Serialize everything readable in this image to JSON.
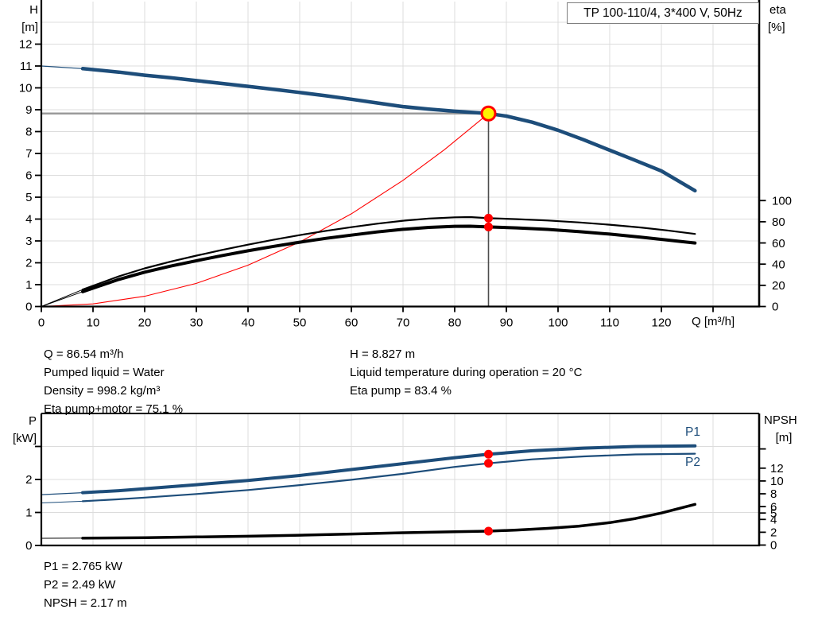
{
  "title_box": {
    "label": "TP 100-110/4, 3*400 V, 50Hz"
  },
  "colors": {
    "curve_blue": "#1D4D7A",
    "curve_black": "#000000",
    "curve_red": "#FF0000",
    "marker_red": "#FF0000",
    "marker_yellow_fill": "#FFF200",
    "grid": "#DCDCDC",
    "axis": "#000000",
    "crosshair_h": "#9A9A9A",
    "crosshair_v": "#4D4D4D",
    "label_blue": "#1D4D7A",
    "title_border": "#7F7F7F",
    "text": "#000000"
  },
  "info_top": {
    "left_lines": [
      "Q = 86.54 m³/h",
      "Pumped liquid = Water",
      "Density = 998.2 kg/m³",
      "Eta pump+motor = 75.1 %"
    ],
    "right_lines": [
      "H = 8.827 m",
      "Liquid temperature during operation = 20 °C",
      "Eta pump = 83.4 %"
    ]
  },
  "info_bottom": {
    "lines": [
      "P1 = 2.765 kW",
      "P2 = 2.49 kW",
      "NPSH = 2.17 m"
    ]
  },
  "chart_data": [
    {
      "type": "line",
      "id": "hq-eta-chart",
      "title": "TP 100-110/4, 3*400 V, 50Hz",
      "xlabel": "Q [m³/h]",
      "ylabel_left_line1": "H",
      "ylabel_left_line2": "[m]",
      "ylabel_right_line1": "eta",
      "ylabel_right_line2": "[%]",
      "xlim": [
        0,
        139
      ],
      "ylim_left": [
        0,
        14
      ],
      "ylim_right": [
        0,
        100
      ],
      "grid": true,
      "xticks_labeled": [
        0,
        10,
        20,
        30,
        40,
        50,
        60,
        70,
        80,
        90,
        100,
        110,
        120
      ],
      "xticks_unlabeled": [
        130
      ],
      "yticks_left": [
        0,
        1,
        2,
        3,
        4,
        5,
        6,
        7,
        8,
        9,
        10,
        11,
        12
      ],
      "yticks_right": [
        0,
        20,
        40,
        60,
        80,
        100
      ],
      "grid_x": [
        10,
        20,
        30,
        40,
        50,
        60,
        70,
        80,
        90,
        100,
        110,
        120,
        130
      ],
      "grid_y_left": [
        1,
        2,
        3,
        4,
        5,
        6,
        7,
        8,
        9,
        10,
        11,
        12,
        13
      ],
      "crosshair": {
        "q": 86.54,
        "h": 8.827
      },
      "series": [
        {
          "name": "Head curve",
          "axis": "left",
          "color": "#1D4D7A",
          "w_thin": 1.2,
          "w_thick": 4.5,
          "split_q": 8,
          "points": [
            [
              0,
              11.0
            ],
            [
              8,
              10.88
            ],
            [
              15,
              10.72
            ],
            [
              20,
              10.58
            ],
            [
              25,
              10.46
            ],
            [
              30,
              10.33
            ],
            [
              35,
              10.2
            ],
            [
              40,
              10.07
            ],
            [
              45,
              9.93
            ],
            [
              50,
              9.79
            ],
            [
              55,
              9.64
            ],
            [
              60,
              9.48
            ],
            [
              65,
              9.31
            ],
            [
              70,
              9.14
            ],
            [
              75,
              9.03
            ],
            [
              80,
              8.93
            ],
            [
              86.54,
              8.827
            ],
            [
              90,
              8.71
            ],
            [
              95,
              8.43
            ],
            [
              100,
              8.06
            ],
            [
              105,
              7.62
            ],
            [
              110,
              7.15
            ],
            [
              115,
              6.68
            ],
            [
              120,
              6.2
            ],
            [
              126.5,
              5.3
            ]
          ]
        },
        {
          "name": "System curve",
          "axis": "left",
          "color": "#FF0000",
          "w_thin": 1.1,
          "w_thick": 1.1,
          "split_q": 0,
          "points": [
            [
              0,
              0
            ],
            [
              10,
              0.12
            ],
            [
              20,
              0.47
            ],
            [
              30,
              1.06
            ],
            [
              40,
              1.89
            ],
            [
              50,
              2.95
            ],
            [
              60,
              4.24
            ],
            [
              70,
              5.77
            ],
            [
              78,
              7.17
            ],
            [
              86.54,
              8.827
            ]
          ]
        },
        {
          "name": "Eta pump",
          "axis": "right",
          "color": "#000000",
          "w_thin": 1.0,
          "w_thick": 2.2,
          "split_q": 8,
          "points": [
            [
              0,
              0
            ],
            [
              8,
              16
            ],
            [
              15,
              28.5
            ],
            [
              20,
              36
            ],
            [
              25,
              42.3
            ],
            [
              30,
              48
            ],
            [
              35,
              53.4
            ],
            [
              40,
              58.4
            ],
            [
              45,
              63.1
            ],
            [
              50,
              67.4
            ],
            [
              55,
              71.4
            ],
            [
              60,
              74.9
            ],
            [
              65,
              78.2
            ],
            [
              70,
              81
            ],
            [
              75,
              83
            ],
            [
              80,
              84.2
            ],
            [
              83,
              84.4
            ],
            [
              86.54,
              83.4
            ],
            [
              92,
              82.5
            ],
            [
              98,
              81.2
            ],
            [
              104,
              79.4
            ],
            [
              110,
              77.2
            ],
            [
              116,
              74.6
            ],
            [
              121,
              71.9
            ],
            [
              126.5,
              68.5
            ]
          ]
        },
        {
          "name": "Eta pump+motor",
          "axis": "right",
          "color": "#000000",
          "w_thin": 1.0,
          "w_thick": 4.0,
          "split_q": 8,
          "points": [
            [
              0,
              0
            ],
            [
              8,
              14
            ],
            [
              15,
              25.6
            ],
            [
              20,
              32.4
            ],
            [
              25,
              38.1
            ],
            [
              30,
              43.2
            ],
            [
              35,
              48.1
            ],
            [
              40,
              52.6
            ],
            [
              45,
              56.8
            ],
            [
              50,
              60.7
            ],
            [
              55,
              64.3
            ],
            [
              60,
              67.4
            ],
            [
              65,
              70.4
            ],
            [
              70,
              72.9
            ],
            [
              75,
              74.7
            ],
            [
              80,
              75.7
            ],
            [
              83,
              75.8
            ],
            [
              86.54,
              75.1
            ],
            [
              92,
              74.2
            ],
            [
              98,
              72.8
            ],
            [
              104,
              70.8
            ],
            [
              110,
              68.4
            ],
            [
              116,
              65.5
            ],
            [
              121,
              62.9
            ],
            [
              126.5,
              60.0
            ]
          ]
        }
      ],
      "markers": [
        {
          "q": 86.54,
          "v": 8.827,
          "axis": "left",
          "style": "duty",
          "name": "duty-point-marker"
        },
        {
          "q": 86.54,
          "v": 83.4,
          "axis": "right",
          "style": "dot",
          "name": "eta-pump-marker"
        },
        {
          "q": 86.54,
          "v": 75.1,
          "axis": "right",
          "style": "dot",
          "name": "eta-pump-motor-marker"
        }
      ]
    },
    {
      "type": "line",
      "id": "power-npsh-chart",
      "xlabel": "",
      "ylabel_left_line1": "P",
      "ylabel_left_line2": "[kW]",
      "ylabel_right_line1": "NPSH",
      "ylabel_right_line2": "[m]",
      "label_p1": "P1",
      "label_p2": "P2",
      "xlim": [
        0,
        139
      ],
      "ylim_left": [
        0,
        4
      ],
      "ylim_right": [
        0,
        16
      ],
      "grid": true,
      "yticks_left_labeled": [
        0,
        1,
        2
      ],
      "yticks_left_unlabeled": [
        3
      ],
      "yticks_right_labeled": [
        0,
        2,
        4,
        5,
        6,
        8,
        10,
        12
      ],
      "yticks_right_unlabeled": [
        15
      ],
      "grid_x": [
        10,
        20,
        30,
        40,
        50,
        60,
        70,
        80,
        90,
        100,
        110,
        120,
        130
      ],
      "grid_y_left": [
        1,
        2,
        3
      ],
      "series": [
        {
          "name": "P1",
          "axis": "left",
          "color": "#1D4D7A",
          "w_thin": 1.2,
          "w_thick": 4.0,
          "split_q": 8,
          "points": [
            [
              0,
              1.54
            ],
            [
              8,
              1.6
            ],
            [
              15,
              1.66
            ],
            [
              20,
              1.72
            ],
            [
              30,
              1.84
            ],
            [
              40,
              1.97
            ],
            [
              50,
              2.12
            ],
            [
              60,
              2.3
            ],
            [
              70,
              2.48
            ],
            [
              80,
              2.66
            ],
            [
              86.54,
              2.765
            ],
            [
              95,
              2.87
            ],
            [
              105,
              2.95
            ],
            [
              115,
              3.0
            ],
            [
              126.5,
              3.02
            ]
          ]
        },
        {
          "name": "P2",
          "axis": "left",
          "color": "#1D4D7A",
          "w_thin": 1.0,
          "w_thick": 2.2,
          "split_q": 8,
          "points": [
            [
              0,
              1.29
            ],
            [
              8,
              1.34
            ],
            [
              15,
              1.4
            ],
            [
              20,
              1.45
            ],
            [
              30,
              1.56
            ],
            [
              40,
              1.68
            ],
            [
              50,
              1.83
            ],
            [
              60,
              1.99
            ],
            [
              70,
              2.17
            ],
            [
              80,
              2.38
            ],
            [
              86.54,
              2.49
            ],
            [
              95,
              2.61
            ],
            [
              105,
              2.7
            ],
            [
              115,
              2.76
            ],
            [
              126.5,
              2.78
            ]
          ]
        },
        {
          "name": "NPSH",
          "axis": "right",
          "color": "#000000",
          "w_thin": 1.0,
          "w_thick": 3.5,
          "split_q": 8,
          "points": [
            [
              0,
              1.05
            ],
            [
              8,
              1.08
            ],
            [
              20,
              1.16
            ],
            [
              30,
              1.26
            ],
            [
              40,
              1.38
            ],
            [
              50,
              1.54
            ],
            [
              60,
              1.72
            ],
            [
              70,
              1.92
            ],
            [
              80,
              2.08
            ],
            [
              86.54,
              2.17
            ],
            [
              92,
              2.35
            ],
            [
              98,
              2.6
            ],
            [
              104,
              2.95
            ],
            [
              110,
              3.5
            ],
            [
              115,
              4.15
            ],
            [
              120,
              5.0
            ],
            [
              126.5,
              6.35
            ]
          ]
        }
      ],
      "markers": [
        {
          "q": 86.54,
          "v": 2.765,
          "axis": "left",
          "style": "dot",
          "name": "p1-marker"
        },
        {
          "q": 86.54,
          "v": 2.49,
          "axis": "left",
          "style": "dot",
          "name": "p2-marker"
        },
        {
          "q": 86.54,
          "v": 2.17,
          "axis": "right",
          "style": "dot",
          "name": "npsh-marker"
        }
      ]
    }
  ]
}
